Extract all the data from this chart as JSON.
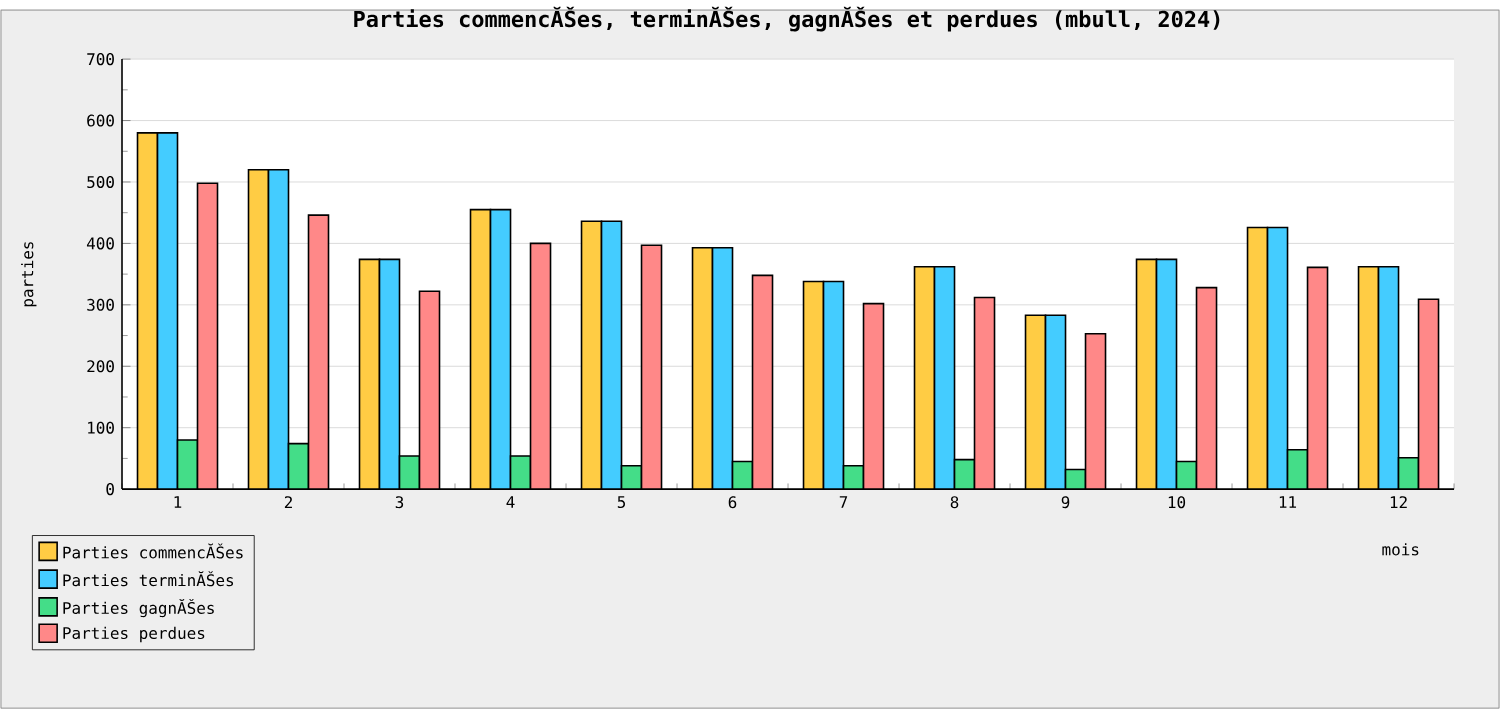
{
  "chart_data": {
    "type": "bar",
    "title": "Parties commencĂŠes, terminĂŠes, gagnĂŠes et perdues (mbull, 2024)",
    "xlabel": "mois",
    "ylabel": "parties",
    "categories": [
      "1",
      "2",
      "3",
      "4",
      "5",
      "6",
      "7",
      "8",
      "9",
      "10",
      "11",
      "12"
    ],
    "series": [
      {
        "name": "Parties commencĂŠes",
        "color": "#ffcc44",
        "values": [
          580,
          520,
          374,
          455,
          436,
          393,
          338,
          362,
          283,
          374,
          426,
          362
        ]
      },
      {
        "name": "Parties terminĂŠes",
        "color": "#44ccff",
        "values": [
          580,
          520,
          374,
          455,
          436,
          393,
          338,
          362,
          283,
          374,
          426,
          362
        ]
      },
      {
        "name": "Parties gagnĂŠes",
        "color": "#44dd88",
        "values": [
          80,
          74,
          54,
          54,
          38,
          45,
          38,
          48,
          32,
          45,
          64,
          51
        ]
      },
      {
        "name": "Parties perdues",
        "color": "#ff8888",
        "values": [
          498,
          446,
          322,
          400,
          397,
          348,
          302,
          312,
          253,
          328,
          361,
          309
        ]
      }
    ],
    "ylim": [
      0,
      700
    ],
    "yticks": [
      0,
      100,
      200,
      300,
      400,
      500,
      600,
      700
    ],
    "grid": "y",
    "legend": "bottom left"
  }
}
